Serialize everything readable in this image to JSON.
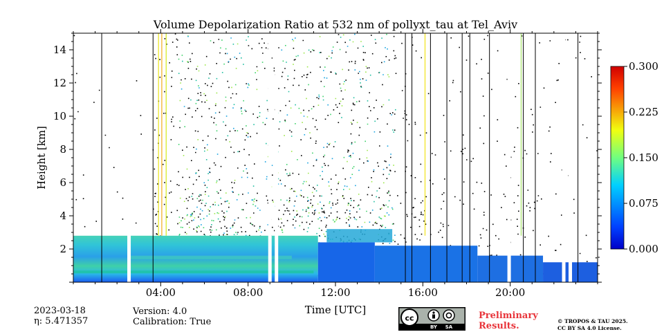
{
  "chart_data": {
    "type": "heatmap",
    "title": "Volume Depolarization Ratio at 532 nm of pollyxt_tau at Tel_Aviv",
    "xlabel": "Time [UTC]",
    "ylabel": "Height [km]",
    "xlim": [
      0,
      24
    ],
    "ylim": [
      0,
      15
    ],
    "x_ticks": [
      {
        "value": 4,
        "label": "04:00"
      },
      {
        "value": 8,
        "label": "08:00"
      },
      {
        "value": 12,
        "label": "12:00"
      },
      {
        "value": 16,
        "label": "16:00"
      },
      {
        "value": 20,
        "label": "20:00"
      }
    ],
    "y_ticks": [
      {
        "value": 2,
        "label": "2"
      },
      {
        "value": 4,
        "label": "4"
      },
      {
        "value": 6,
        "label": "6"
      },
      {
        "value": 8,
        "label": "8"
      },
      {
        "value": 10,
        "label": "10"
      },
      {
        "value": 12,
        "label": "12"
      },
      {
        "value": 14,
        "label": "14"
      }
    ],
    "colorbar": {
      "range": [
        0.0,
        0.3
      ],
      "ticks": [
        "0.000",
        "0.075",
        "0.150",
        "0.225",
        "0.300"
      ],
      "colormap": "jet"
    },
    "gaps_hours": [
      2.55,
      9.0,
      9.3,
      19.95,
      22.45,
      22.75
    ],
    "thin_lines_hours": [
      1.3,
      3.65,
      15.2,
      15.5,
      16.35,
      17.1,
      17.8,
      18.15,
      19.05,
      20.6,
      21.15,
      23.1
    ],
    "boundary_layer_top_km": 2.8
  },
  "meta": {
    "date": "2023-03-18",
    "eta": "η: 5.471357",
    "version": "Version: 4.0",
    "calibration": "Calibration: True",
    "preliminary_line1": "Preliminary",
    "preliminary_line2": "Results.",
    "copyright_line1": "© TROPOS & TAU 2025.",
    "copyright_line2": "CC BY SA 4.0 License.",
    "license_badge": {
      "cc": "cc",
      "by": "BY",
      "sa": "SA"
    }
  }
}
